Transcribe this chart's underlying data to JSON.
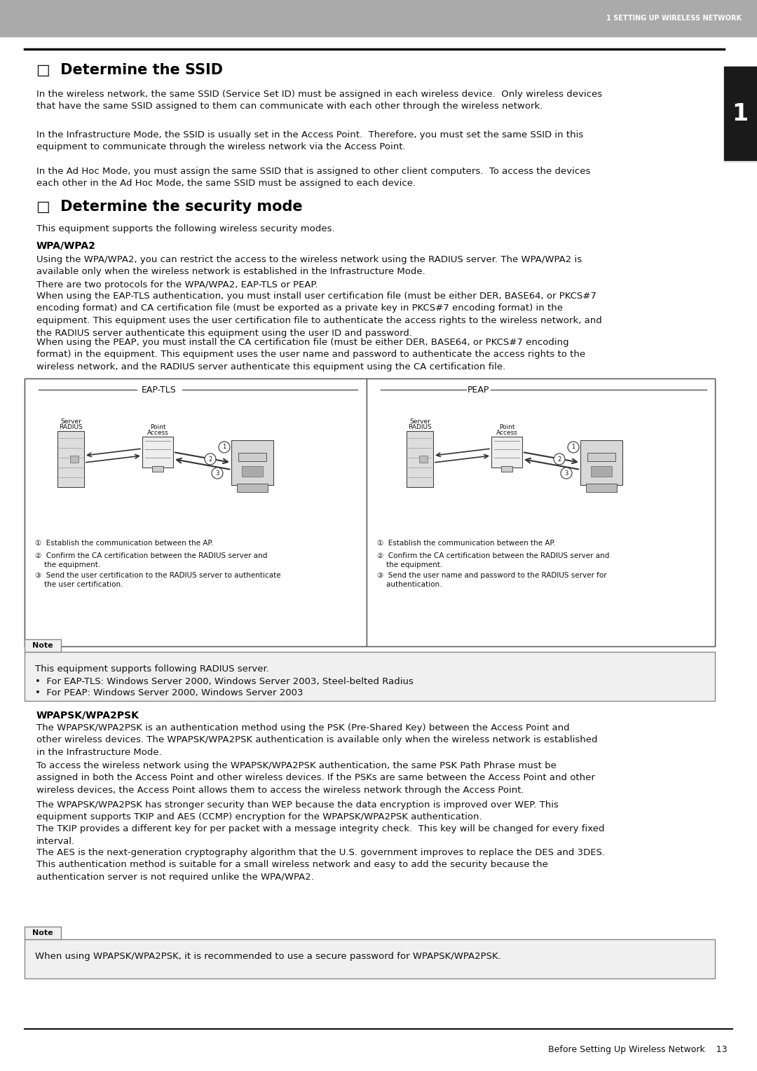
{
  "header_bg": "#aaaaaa",
  "header_text": "1 SETTING UP WIRELESS NETWORK",
  "header_text_color": "#ffffff",
  "page_bg": "#ffffff",
  "side_tab_bg": "#1a1a1a",
  "side_tab_text": "1",
  "side_tab_text_color": "#ffffff",
  "body_color": "#111111",
  "title_color": "#000000",
  "footer_text": "Before Setting Up Wireless Network    13",
  "section1_title": "□  Determine the SSID",
  "section1_para1": "In the wireless network, the same SSID (Service Set ID) must be assigned in each wireless device.  Only wireless devices\nthat have the same SSID assigned to them can communicate with each other through the wireless network.",
  "section1_para2": "In the Infrastructure Mode, the SSID is usually set in the Access Point.  Therefore, you must set the same SSID in this\nequipment to communicate through the wireless network via the Access Point.",
  "section1_para3": "In the Ad Hoc Mode, you must assign the same SSID that is assigned to other client computers.  To access the devices\neach other in the Ad Hoc Mode, the same SSID must be assigned to each device.",
  "section2_title": "□  Determine the security mode",
  "section2_intro": "This equipment supports the following wireless security modes.",
  "subsection1_title": "WPA/WPA2",
  "subsection1_para1": "Using the WPA/WPA2, you can restrict the access to the wireless network using the RADIUS server. The WPA/WPA2 is\navailable only when the wireless network is established in the Infrastructure Mode.",
  "subsection1_para2": "There are two protocols for the WPA/WPA2, EAP-TLS or PEAP.",
  "subsection1_para3": "When using the EAP-TLS authentication, you must install user certification file (must be either DER, BASE64, or PKCS#7\nencoding format) and CA certification file (must be exported as a private key in PKCS#7 encoding format) in the\nequipment. This equipment uses the user certification file to authenticate the access rights to the wireless network, and\nthe RADIUS server authenticate this equipment using the user ID and password.",
  "subsection1_para4": "When using the PEAP, you must install the CA certification file (must be either DER, BASE64, or PKCS#7 encoding\nformat) in the equipment. This equipment uses the user name and password to authenticate the access rights to the\nwireless network, and the RADIUS server authenticate this equipment using the CA certification file.",
  "diagram_label_left": "EAP-TLS",
  "diagram_label_right": "PEAP",
  "diagram_cap_l1": "①  Establish the communication between the AP.",
  "diagram_cap_l2": "②  Confirm the CA certification between the RADIUS server and\n    the equipment.",
  "diagram_cap_l3": "③  Send the user certification to the RADIUS server to authenticate\n    the user certification.",
  "diagram_cap_r1": "①  Establish the communication between the AP.",
  "diagram_cap_r2": "②  Confirm the CA certification between the RADIUS server and\n    the equipment.",
  "diagram_cap_r3": "③  Send the user name and password to the RADIUS server for\n    authentication.",
  "note_label": "Note",
  "note_bg": "#f0f0f0",
  "note_border": "#888888",
  "note1_line1": "This equipment supports following RADIUS server.",
  "note1_line2": "•  For EAP-TLS: Windows Server 2000, Windows Server 2003, Steel-belted Radius",
  "note1_line3": "•  For PEAP: Windows Server 2000, Windows Server 2003",
  "subsection2_title": "WPAPSK/WPA2PSK",
  "subsection2_para1": "The WPAPSK/WPA2PSK is an authentication method using the PSK (Pre-Shared Key) between the Access Point and\nother wireless devices. The WPAPSK/WPA2PSK authentication is available only when the wireless network is established\nin the Infrastructure Mode.",
  "subsection2_para2": "To access the wireless network using the WPAPSK/WPA2PSK authentication, the same PSK Path Phrase must be\nassigned in both the Access Point and other wireless devices. If the PSKs are same between the Access Point and other\nwireless devices, the Access Point allows them to access the wireless network through the Access Point.",
  "subsection2_para3": "The WPAPSK/WPA2PSK has stronger security than WEP because the data encryption is improved over WEP. This\nequipment supports TKIP and AES (CCMP) encryption for the WPAPSK/WPA2PSK authentication.",
  "subsection2_para4": "The TKIP provides a different key for per packet with a message integrity check.  This key will be changed for every fixed\ninterval.",
  "subsection2_para5": "The AES is the next-generation cryptography algorithm that the U.S. government improves to replace the DES and 3DES.\nThis authentication method is suitable for a small wireless network and easy to add the security because the\nauthentication server is not required unlike the WPA/WPA2.",
  "note2_text": "When using WPAPSK/WPA2PSK, it is recommended to use a secure password for WPAPSK/WPA2PSK.",
  "title_fontsize": 15,
  "body_fontsize": 9.5,
  "sub_title_fontsize": 10
}
